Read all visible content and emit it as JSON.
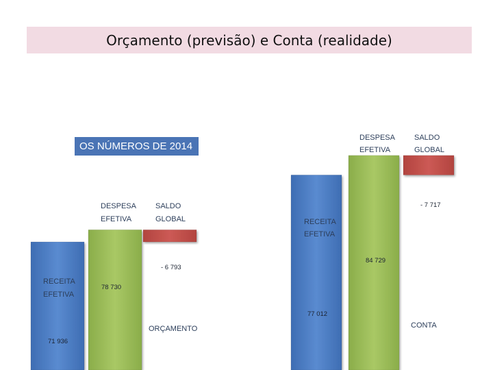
{
  "title": "Orçamento (previsão) e Conta (realidade)",
  "badge": "OS NÚMEROS DE 2014",
  "colors": {
    "receita": "#4f7fc4",
    "despesa": "#9bbb59",
    "saldo": "#c0504d",
    "title_bg": "#f2dbe3",
    "badge_bg": "#4a74b5"
  },
  "chart_data": [
    {
      "type": "bar",
      "name": "ORÇAMENTO",
      "categories": [
        "RECEITA EFETIVA",
        "DESPESA EFETIVA",
        "SALDO GLOBAL"
      ],
      "values": [
        71936,
        78730,
        -6793
      ],
      "value_labels": [
        "71 936",
        "78 730",
        "- 6 793"
      ],
      "category_labels": [
        [
          "RECEITA",
          "EFETIVA"
        ],
        [
          "DESPESA",
          "EFETIVA"
        ],
        [
          "SALDO",
          "GLOBAL"
        ]
      ],
      "waterfall": true
    },
    {
      "type": "bar",
      "name": "CONTA",
      "categories": [
        "RECEITA EFETIVA",
        "DESPESA EFETIVA",
        "SALDO GLOBAL"
      ],
      "values": [
        77012,
        84729,
        -7717
      ],
      "value_labels": [
        "77 012",
        "84 729",
        "- 7 717"
      ],
      "category_labels": [
        [
          "RECEITA",
          "EFETIVA"
        ],
        [
          "DESPESA",
          "EFETIVA"
        ],
        [
          "SALDO",
          "GLOBAL"
        ]
      ],
      "waterfall": true
    }
  ]
}
